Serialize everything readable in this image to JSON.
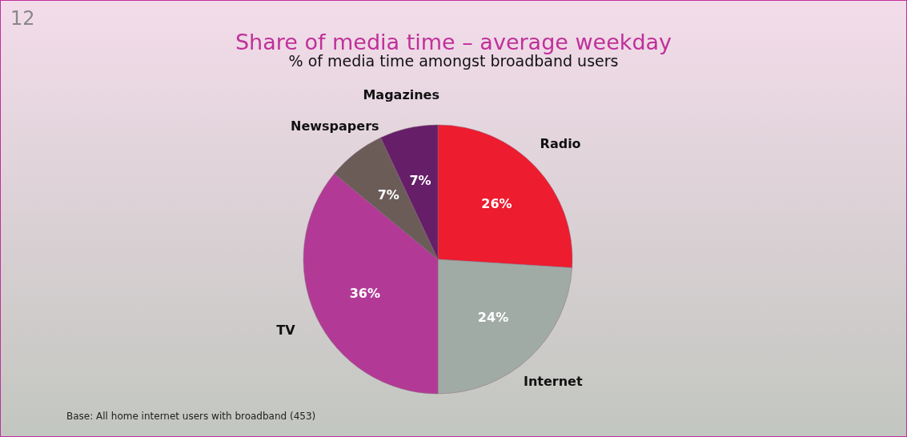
{
  "chart_data": {
    "type": "pie",
    "title": "Share of media time – average weekday",
    "subtitle": "% of media time amongst broadband users",
    "categories": [
      "Radio",
      "Internet",
      "TV",
      "Newspapers",
      "Magazines"
    ],
    "values": [
      26,
      24,
      36,
      7,
      7
    ],
    "colors": [
      "#ed1c2e",
      "#a1aba6",
      "#b23a96",
      "#6b5c58",
      "#661e68"
    ],
    "value_labels": [
      "26%",
      "24%",
      "36%",
      "7%",
      "7%"
    ],
    "annotations": [
      "12",
      "Base: All home internet users with broadband (453)"
    ]
  }
}
